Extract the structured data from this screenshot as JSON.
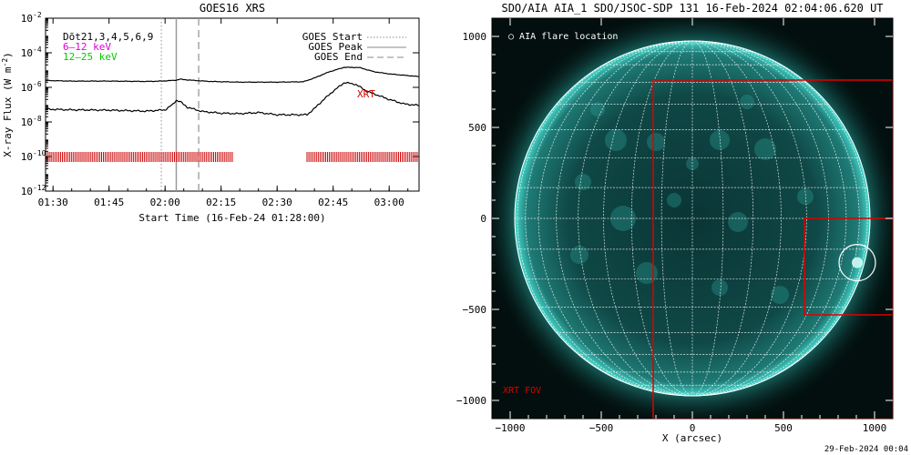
{
  "chart_data": [
    {
      "type": "line",
      "title": "GOES16 XRS",
      "xlabel": "Start Time (16-Feb-24 01:28:00)",
      "ylabel": "X-ray Flux (W m",
      "ylabel_unit_exponent": "-2",
      "ylabel_close": ")",
      "x_tick_labels": [
        "01:30",
        "01:45",
        "02:00",
        "02:15",
        "02:30",
        "02:45",
        "03:00"
      ],
      "y_tick_exponents": [
        "-2",
        "-4",
        "-6",
        "-8",
        "-10",
        "-12"
      ],
      "y_tick_base": "10",
      "ylim": [
        1e-12,
        0.01
      ],
      "y_scale": "log",
      "xlim": [
        "01:28",
        "03:08"
      ],
      "top_left_label": "Dōt21,3,4,5,6,9",
      "series": [
        {
          "name": "6–12 keV",
          "color": "#dd00dd",
          "times": [
            "01:28",
            "01:35",
            "01:45",
            "01:55",
            "01:59",
            "02:03",
            "02:04",
            "02:05",
            "02:08",
            "02:12",
            "02:20",
            "02:30",
            "02:37",
            "02:40",
            "02:44",
            "02:48",
            "02:52",
            "02:56",
            "03:00",
            "03:04",
            "03:08"
          ],
          "values": [
            2.5e-06,
            2.3e-06,
            2.3e-06,
            2.2e-06,
            2.3e-06,
            2.6e-06,
            3e-06,
            2.8e-06,
            2.5e-06,
            2.2e-06,
            2e-06,
            2e-06,
            2.1e-06,
            3.5e-06,
            8e-06,
            1.45e-05,
            1.4e-05,
            8e-06,
            6e-06,
            5e-06,
            4.2e-06
          ]
        },
        {
          "name": "12–25 keV",
          "color": "#00cc00",
          "times": [
            "01:28",
            "01:35",
            "01:45",
            "01:55",
            "02:00",
            "02:02",
            "02:03",
            "02:04",
            "02:06",
            "02:10",
            "02:15",
            "02:20",
            "02:25",
            "02:30",
            "02:35",
            "02:38",
            "02:40",
            "02:42",
            "02:45",
            "02:48",
            "02:51",
            "02:54",
            "03:00",
            "03:04",
            "03:08"
          ],
          "values": [
            5.5e-08,
            5e-08,
            4.8e-08,
            4.2e-08,
            5e-08,
            1e-07,
            1.8e-07,
            1.5e-07,
            7e-08,
            4e-08,
            3.2e-08,
            3e-08,
            3.5e-08,
            2.6e-08,
            2.6e-08,
            2.6e-08,
            6e-08,
            1.6e-07,
            6e-07,
            1.9e-06,
            1.5e-06,
            6e-07,
            2e-07,
            1.1e-07,
            9e-08
          ]
        }
      ],
      "event_lines": [
        {
          "name": "GOES Start",
          "time": "01:59",
          "style": "dotted",
          "color": "#aaaaaa"
        },
        {
          "name": "GOES Peak",
          "time": "02:03",
          "style": "solid",
          "color": "#999999"
        },
        {
          "name": "GOES End",
          "time": "02:09",
          "style": "dashed",
          "color": "#999999"
        }
      ],
      "xrt_coverage": {
        "label": "XRT",
        "level": 1e-10,
        "color": "#cc0000",
        "intervals": [
          [
            "01:28",
            "02:18"
          ],
          [
            "02:38",
            "03:08"
          ]
        ]
      }
    },
    {
      "type": "image",
      "title": "SDO/AIA AIA_1 SDO/JSOC-SDP 131 16-Feb-2024 02:04:06.620 UT",
      "xlabel": "X (arcsec)",
      "x_tick_labels": [
        "−1000",
        "−500",
        "0",
        "500",
        "1000"
      ],
      "y_tick_labels": [
        "1000",
        "500",
        "0",
        "−500",
        "−1000"
      ],
      "xlim": [
        -1100,
        1100
      ],
      "ylim": [
        -1100,
        1100
      ],
      "solar_radius_arcsec": 975,
      "grid_spacing_deg": 10,
      "flare_marker": {
        "label": "AIA flare location",
        "x": 905,
        "y": -243,
        "radius": 100,
        "color": "#ffffff"
      },
      "xrt_fov": {
        "label": "XRT FOV",
        "color": "#dd0000",
        "x0": -215,
        "x1": 1100,
        "y0": -1100,
        "y1": 760
      },
      "xrt_subfield": {
        "x0": 615,
        "x1": 1100,
        "y0": -530,
        "y1": 0
      },
      "colors": {
        "background": "#020f0e",
        "disk": "#0b3b3a",
        "limb": "#3fd6cc"
      }
    }
  ],
  "footer_text": "29-Feb-2024 00:04"
}
